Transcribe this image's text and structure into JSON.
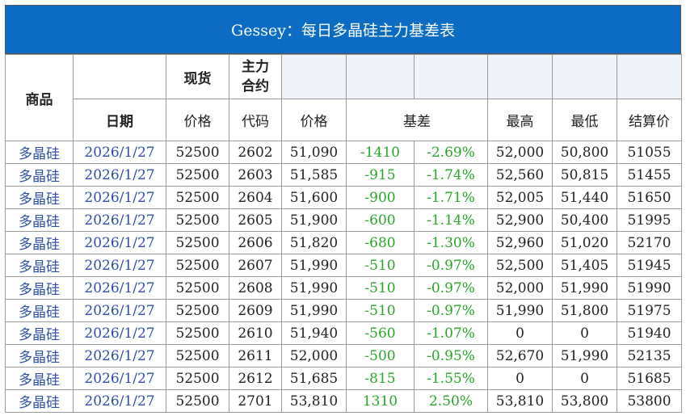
{
  "title": "Gessey：每日多晶硅主力基差表",
  "header": {
    "product": "商品",
    "spot": "现货",
    "main_contract": "主力合约",
    "date": "日期",
    "spot_price": "价格",
    "code": "代码",
    "price": "价格",
    "basis": "基差",
    "high": "最高",
    "low": "最低",
    "settle": "结算价"
  },
  "rows": [
    [
      "多晶硅",
      "2026/1/27",
      "52500",
      "2602",
      "51,090",
      "-1410",
      "-2.69%",
      "52,000",
      "50,800",
      "51055"
    ],
    [
      "多晶硅",
      "2026/1/27",
      "52500",
      "2603",
      "51,585",
      "-915",
      "-1.74%",
      "52,560",
      "50,815",
      "51455"
    ],
    [
      "多晶硅",
      "2026/1/27",
      "52500",
      "2604",
      "51,600",
      "-900",
      "-1.71%",
      "52,005",
      "51,440",
      "51650"
    ],
    [
      "多晶硅",
      "2026/1/27",
      "52500",
      "2605",
      "51,900",
      "-600",
      "-1.14%",
      "52,900",
      "50,400",
      "51995"
    ],
    [
      "多晶硅",
      "2026/1/27",
      "52500",
      "2606",
      "51,820",
      "-680",
      "-1.30%",
      "52,960",
      "51,020",
      "52170"
    ],
    [
      "多晶硅",
      "2026/1/27",
      "52500",
      "2607",
      "51,990",
      "-510",
      "-0.97%",
      "52,500",
      "51,405",
      "51945"
    ],
    [
      "多晶硅",
      "2026/1/27",
      "52500",
      "2608",
      "51,990",
      "-510",
      "-0.97%",
      "52,000",
      "51,990",
      "51990"
    ],
    [
      "多晶硅",
      "2026/1/27",
      "52500",
      "2609",
      "51,990",
      "-510",
      "-0.97%",
      "51,990",
      "51,800",
      "51975"
    ],
    [
      "多晶硅",
      "2026/1/27",
      "52500",
      "2610",
      "51,940",
      "-560",
      "-1.07%",
      "0",
      "0",
      "51940"
    ],
    [
      "多晶硅",
      "2026/1/27",
      "52500",
      "2611",
      "52,000",
      "-500",
      "-0.95%",
      "52,670",
      "51,990",
      "52135"
    ],
    [
      "多晶硅",
      "2026/1/27",
      "52500",
      "2612",
      "51,685",
      "-815",
      "-1.55%",
      "0",
      "0",
      "51685"
    ],
    [
      "多晶硅",
      "2026/1/27",
      "52500",
      "2701",
      "53,810",
      "1310",
      "2.50%",
      "53,810",
      "53,800",
      "53800"
    ]
  ]
}
